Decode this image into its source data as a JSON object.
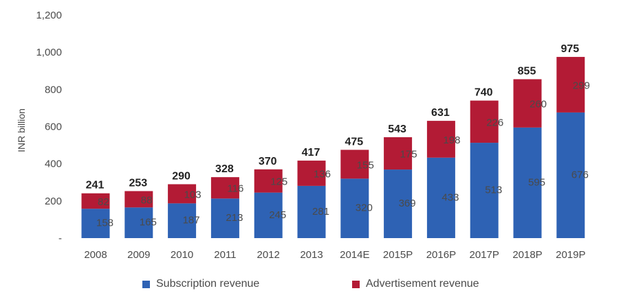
{
  "chart_data": {
    "type": "bar",
    "stacked": true,
    "categories": [
      "2008",
      "2009",
      "2010",
      "2011",
      "2012",
      "2013",
      "2014E",
      "2015P",
      "2016P",
      "2017P",
      "2018P",
      "2019P"
    ],
    "series": [
      {
        "name": "Subscription revenue",
        "color": "#2e62b4",
        "values": [
          158,
          165,
          187,
          213,
          245,
          281,
          320,
          369,
          433,
          513,
          595,
          676
        ]
      },
      {
        "name": "Advertisement revenue",
        "color": "#b31b35",
        "values": [
          82,
          88,
          103,
          116,
          125,
          136,
          155,
          175,
          198,
          226,
          260,
          299
        ]
      }
    ],
    "totals": [
      241,
      253,
      290,
      328,
      370,
      417,
      475,
      543,
      631,
      740,
      855,
      975
    ],
    "ylabel": "INR billion",
    "ylim": [
      0,
      1200
    ],
    "yticks": [
      0,
      200,
      400,
      600,
      800,
      1000,
      1200
    ],
    "ytick_labels": [
      "-",
      "200",
      "400",
      "600",
      "800",
      "1,000",
      "1,200"
    ],
    "grid": false,
    "legend_position": "bottom"
  }
}
